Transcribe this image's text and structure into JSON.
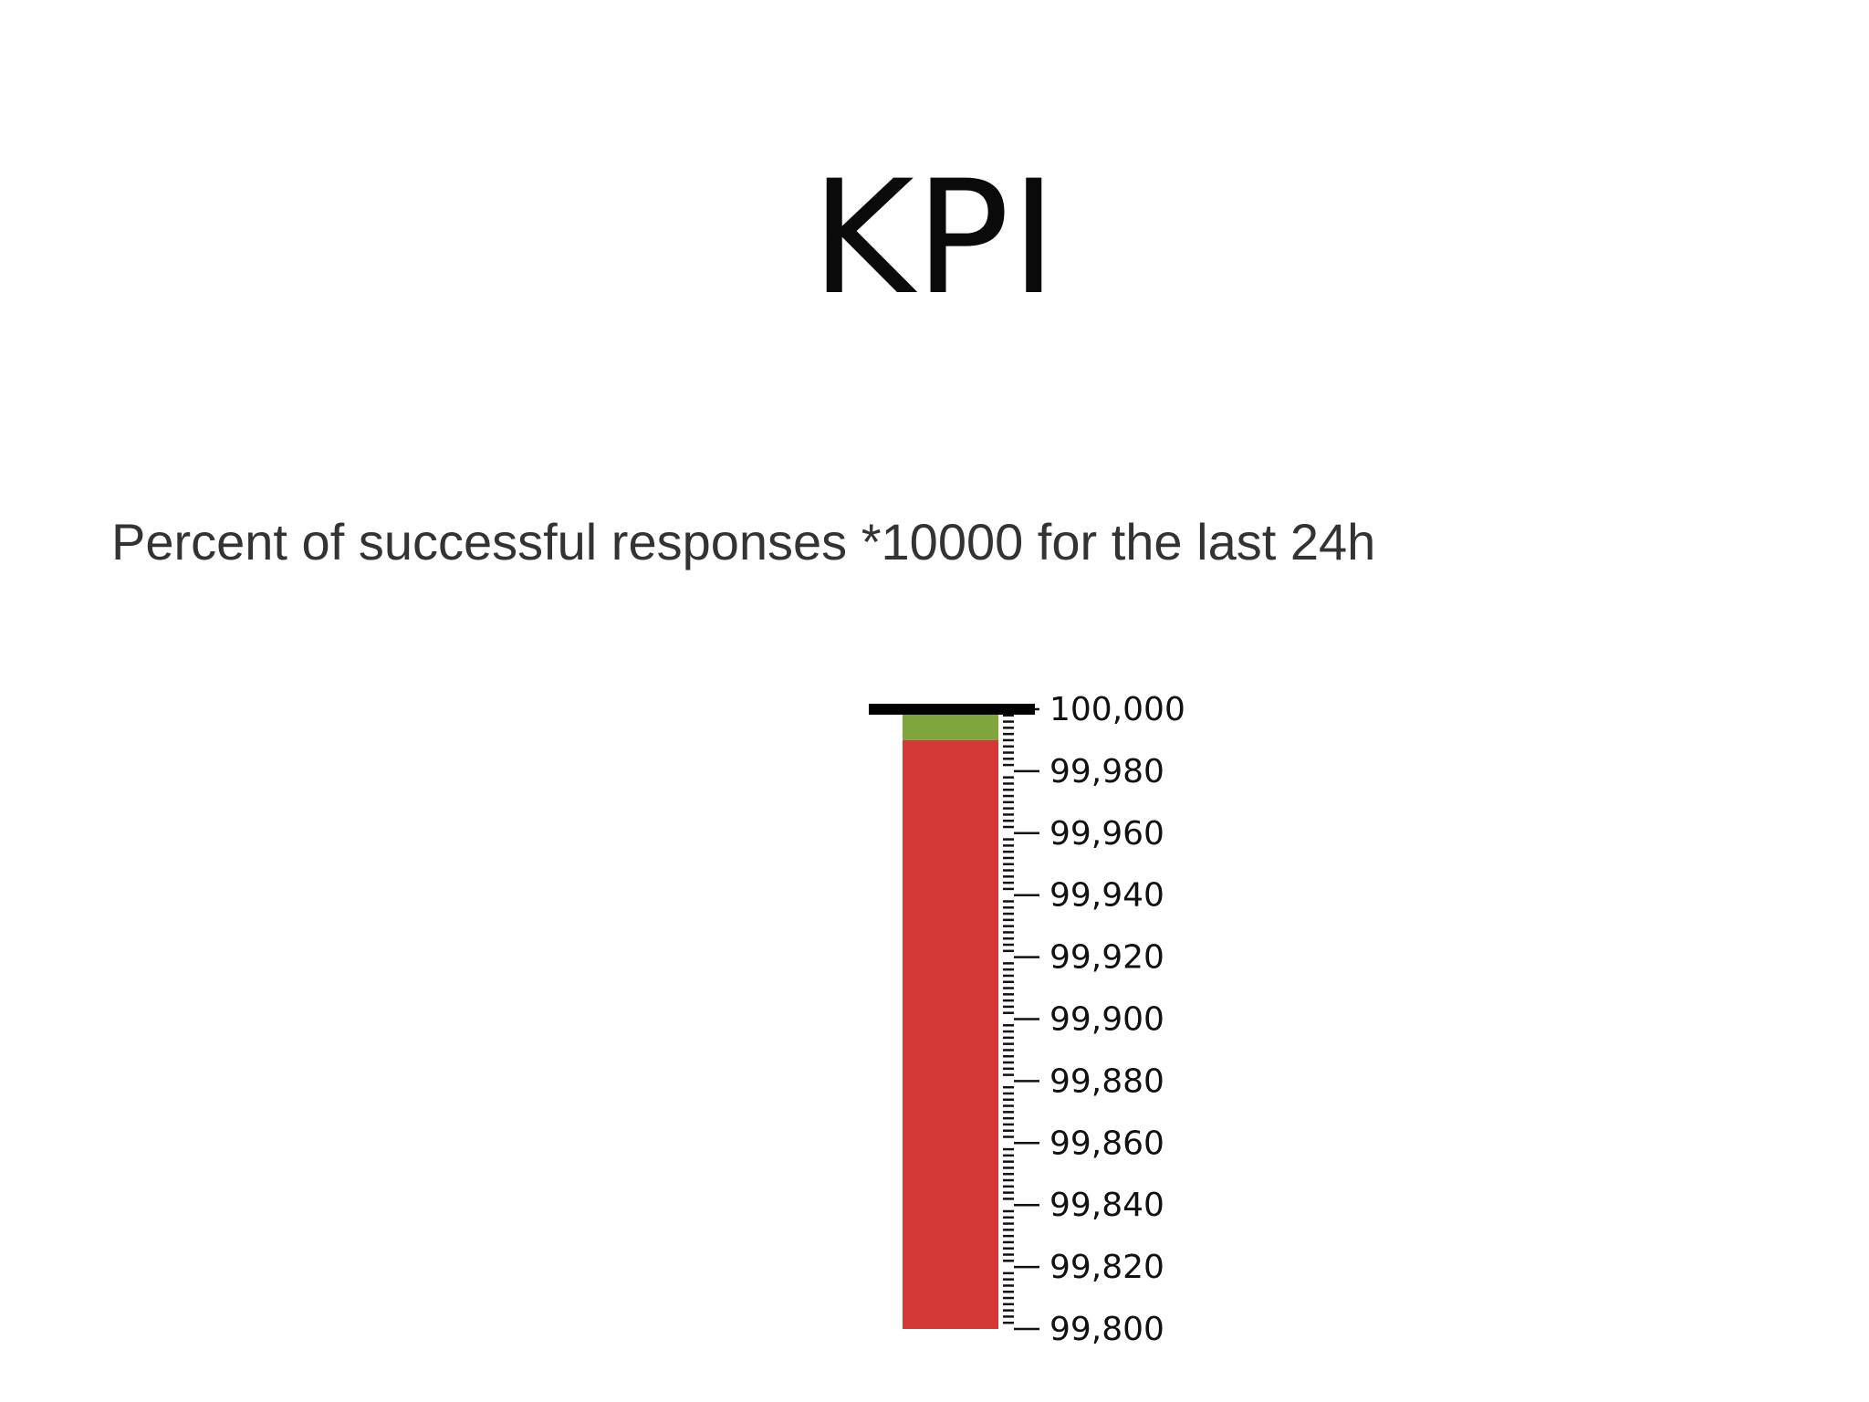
{
  "slide": {
    "title": "KPI",
    "subtitle": "Percent of successful responses *10000 for the last 24h"
  },
  "chart_data": {
    "type": "bullet",
    "orientation": "vertical",
    "title": "",
    "ylim": [
      99800,
      100000
    ],
    "ranges": [
      {
        "from": 99800,
        "to": 99990,
        "color": "#d63737"
      },
      {
        "from": 99990,
        "to": 100000,
        "color": "#7ea63c"
      }
    ],
    "target": 100000,
    "target_color": "#000000",
    "major_ticks": [
      100000,
      99980,
      99960,
      99940,
      99920,
      99900,
      99880,
      99860,
      99840,
      99820,
      99800
    ],
    "tick_labels": [
      "100,000",
      "99,980",
      "99,960",
      "99,940",
      "99,920",
      "99,900",
      "99,880",
      "99,860",
      "99,840",
      "99,820",
      "99,800"
    ],
    "minor_tick_step": 2
  }
}
